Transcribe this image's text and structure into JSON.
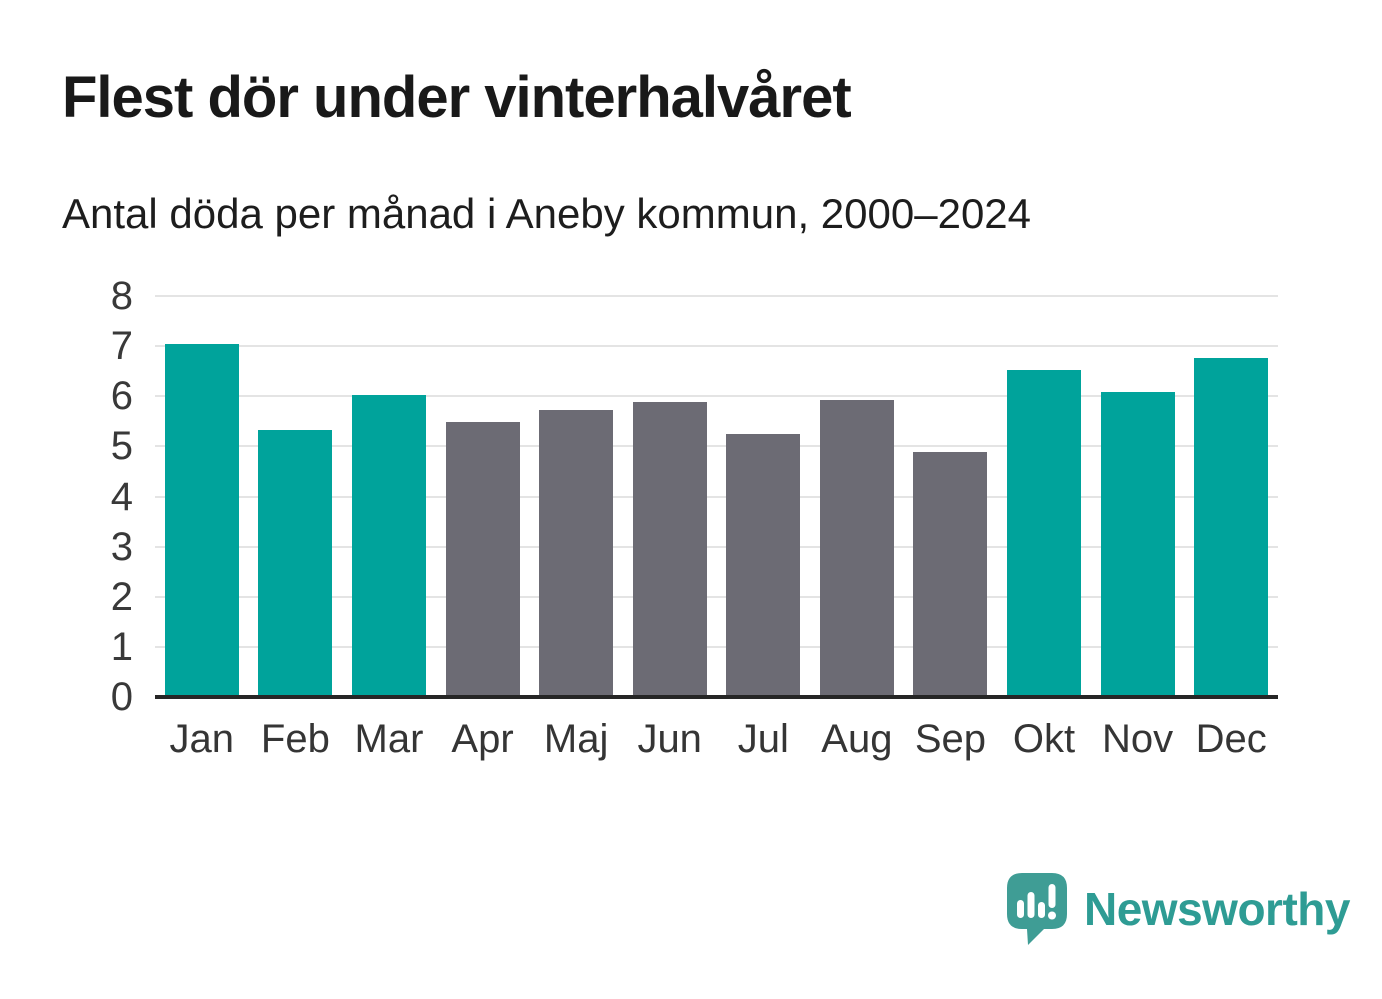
{
  "header": {
    "title": "Flest dör under vinterhalvåret",
    "subtitle": "Antal döda per månad i Aneby kommun, 2000–2024"
  },
  "chart_data": {
    "type": "bar",
    "title": "Flest dör under vinterhalvåret",
    "subtitle": "Antal döda per månad i Aneby kommun, 2000–2024",
    "categories": [
      "Jan",
      "Feb",
      "Mar",
      "Apr",
      "Maj",
      "Jun",
      "Jul",
      "Aug",
      "Sep",
      "Okt",
      "Nov",
      "Dec"
    ],
    "values": [
      7.05,
      5.33,
      6.02,
      5.49,
      5.72,
      5.88,
      5.25,
      5.92,
      4.89,
      6.52,
      6.08,
      6.76
    ],
    "bar_color_keys": [
      "winter",
      "winter",
      "winter",
      "summer",
      "summer",
      "summer",
      "summer",
      "summer",
      "summer",
      "winter",
      "winter",
      "winter"
    ],
    "colors": {
      "winter": "#00a39b",
      "summer": "#6c6b74"
    },
    "xlabel": "",
    "ylabel": "",
    "ylim": [
      0,
      8
    ],
    "yticks": [
      0,
      1,
      2,
      3,
      4,
      5,
      6,
      7,
      8
    ],
    "grid": true,
    "legend_position": "none",
    "gridline_color": "#e4e4e4",
    "baseline_color": "#262626"
  },
  "footer": {
    "brand": "Newsworthy",
    "brand_color": "#2e9c94",
    "logo_icon": "speech-bubble-bar-chart-icon",
    "logo_color": "#3f9d95"
  }
}
